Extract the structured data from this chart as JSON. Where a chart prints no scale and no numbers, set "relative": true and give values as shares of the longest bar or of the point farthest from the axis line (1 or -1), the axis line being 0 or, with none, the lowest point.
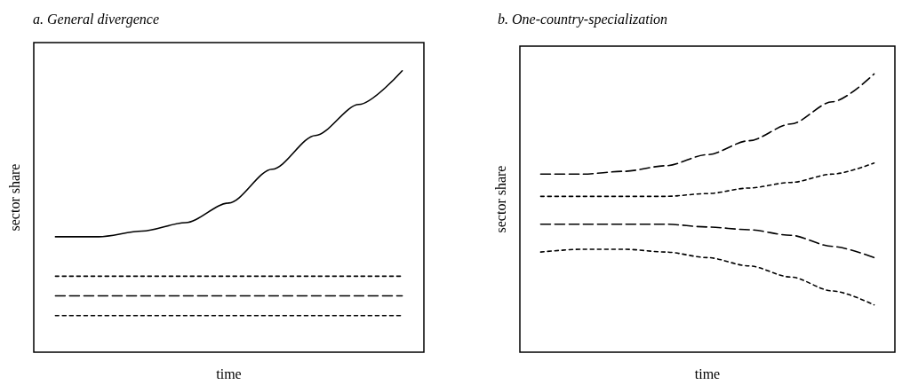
{
  "chart_data": [
    {
      "type": "line",
      "title": "a. General divergence",
      "xlabel": "time",
      "ylabel": "sector share",
      "relative": true,
      "grid": false,
      "marker": "none",
      "categories": [
        null,
        null,
        null,
        null,
        null,
        null,
        null,
        null,
        null
      ],
      "series": [
        {
          "color": "#000000",
          "line_style": "solid",
          "values": [
            0.41,
            0.41,
            0.43,
            0.46,
            0.53,
            0.65,
            0.77,
            0.88,
            1.0
          ]
        },
        {
          "color": "#000000",
          "line_style": "dotted",
          "values": [
            0.27,
            0.27,
            0.27,
            0.27,
            0.27,
            0.27,
            0.27,
            0.27,
            0.27
          ]
        },
        {
          "color": "#000000",
          "line_style": "dashed",
          "values": [
            0.2,
            0.2,
            0.2,
            0.2,
            0.2,
            0.2,
            0.2,
            0.2,
            0.2
          ]
        },
        {
          "color": "#000000",
          "line_style": "dotted",
          "values": [
            0.13,
            0.13,
            0.13,
            0.13,
            0.13,
            0.13,
            0.13,
            0.13,
            0.13
          ]
        }
      ]
    },
    {
      "type": "line",
      "title": "b. One-country-specialization",
      "xlabel": "time",
      "ylabel": "sector share",
      "relative": true,
      "grid": false,
      "marker": "none",
      "categories": [
        null,
        null,
        null,
        null,
        null,
        null,
        null,
        null,
        null
      ],
      "series": [
        {
          "color": "#000000",
          "line_style": "dashed",
          "values": [
            0.64,
            0.64,
            0.65,
            0.67,
            0.71,
            0.76,
            0.82,
            0.9,
            1.0
          ]
        },
        {
          "color": "#000000",
          "line_style": "dotted",
          "values": [
            0.56,
            0.56,
            0.56,
            0.56,
            0.57,
            0.59,
            0.61,
            0.64,
            0.68
          ]
        },
        {
          "color": "#000000",
          "line_style": "dashed",
          "values": [
            0.46,
            0.46,
            0.46,
            0.46,
            0.45,
            0.44,
            0.42,
            0.38,
            0.34
          ]
        },
        {
          "color": "#000000",
          "line_style": "dotted",
          "values": [
            0.36,
            0.37,
            0.37,
            0.36,
            0.34,
            0.31,
            0.27,
            0.22,
            0.17
          ]
        }
      ]
    }
  ]
}
